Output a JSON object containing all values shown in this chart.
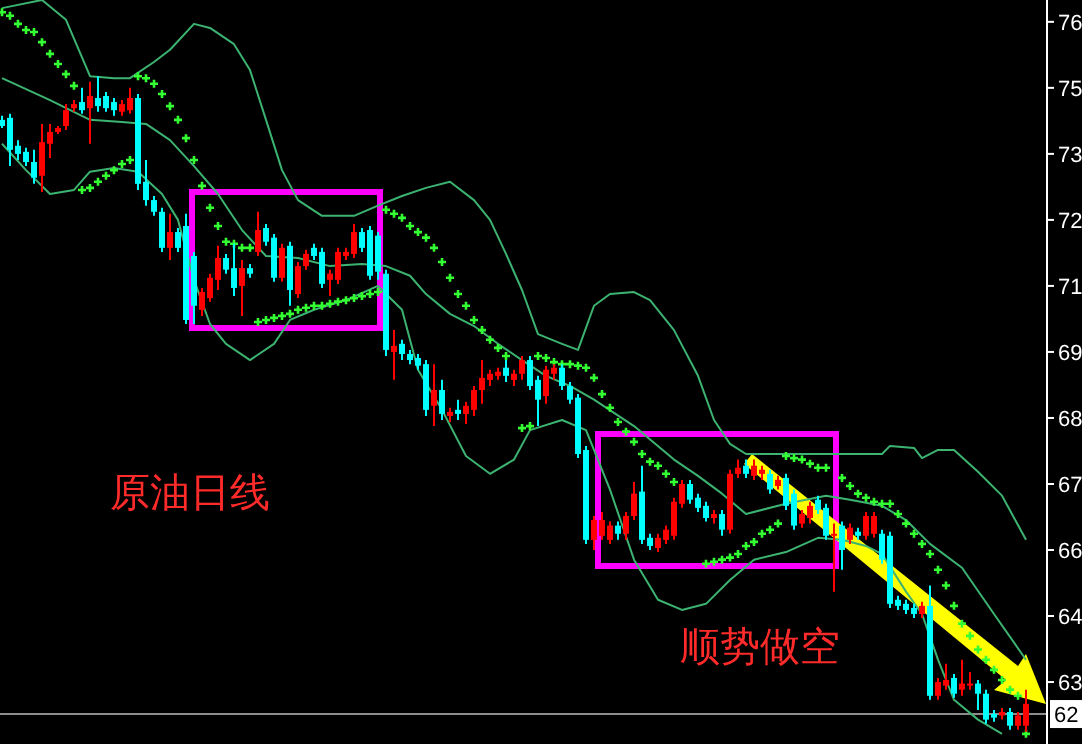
{
  "chart_data": {
    "type": "candlestick",
    "categories": [
      null,
      null,
      null,
      null,
      null,
      null,
      null,
      null,
      null,
      null,
      null,
      null,
      null,
      null,
      null,
      null,
      null,
      null,
      null,
      null,
      null,
      null,
      null,
      null,
      null,
      null,
      null,
      null,
      null,
      null,
      null,
      null,
      null,
      null,
      null,
      null,
      null,
      null,
      null,
      null,
      null,
      null,
      null,
      null,
      null,
      null,
      null,
      null,
      null,
      null,
      null,
      null,
      null,
      null,
      null,
      null,
      null,
      null,
      null,
      null,
      null,
      null,
      null,
      null,
      null,
      null,
      null,
      null,
      null,
      null,
      null,
      null,
      null,
      null,
      null,
      null,
      null,
      null,
      null,
      null,
      null,
      null,
      null,
      null,
      null,
      null,
      null,
      null,
      null,
      null,
      null,
      null,
      null,
      null,
      null,
      null,
      null,
      null,
      null,
      null,
      null,
      null,
      null,
      null,
      null,
      null,
      null,
      null,
      null,
      null,
      null,
      null,
      null,
      null,
      null,
      null,
      null,
      null,
      null,
      null,
      null,
      null,
      null,
      null,
      null,
      null,
      null,
      null,
      null
    ],
    "ohlc": [
      [
        74.02,
        74.1,
        73.86,
        73.9
      ],
      [
        74.06,
        74.14,
        73.11,
        73.43
      ],
      [
        73.51,
        73.62,
        73.23,
        73.35
      ],
      [
        73.39,
        73.47,
        73.11,
        73.19
      ],
      [
        73.19,
        73.43,
        72.76,
        72.88
      ],
      [
        72.92,
        73.94,
        72.6,
        73.58
      ],
      [
        73.55,
        73.94,
        73.27,
        73.78
      ],
      [
        73.78,
        73.9,
        73.74,
        73.86
      ],
      [
        73.9,
        74.33,
        73.82,
        74.21
      ],
      [
        74.25,
        74.41,
        74.18,
        74.33
      ],
      [
        74.37,
        74.65,
        74.14,
        74.21
      ],
      [
        74.25,
        74.77,
        73.55,
        74.49
      ],
      [
        74.45,
        74.88,
        74.18,
        74.29
      ],
      [
        74.49,
        74.57,
        74.18,
        74.25
      ],
      [
        74.37,
        74.45,
        74.1,
        74.21
      ],
      [
        74.18,
        74.41,
        74.1,
        74.33
      ],
      [
        74.21,
        74.65,
        74.14,
        74.45
      ],
      [
        74.45,
        74.53,
        72.64,
        72.76
      ],
      [
        72.8,
        73.23,
        72.33,
        72.44
      ],
      [
        72.44,
        72.52,
        72.13,
        72.21
      ],
      [
        72.21,
        72.29,
        71.42,
        71.5
      ],
      [
        71.5,
        72.17,
        71.26,
        71.81
      ],
      [
        71.81,
        71.89,
        71.42,
        71.5
      ],
      [
        71.93,
        72.17,
        70.0,
        70.08
      ],
      [
        71.34,
        71.42,
        70.0,
        70.36
      ],
      [
        70.28,
        70.71,
        70.16,
        70.63
      ],
      [
        70.51,
        70.99,
        70.44,
        70.91
      ],
      [
        70.87,
        71.54,
        70.67,
        71.3
      ],
      [
        71.3,
        71.38,
        70.99,
        71.07
      ],
      [
        71.1,
        71.58,
        70.55,
        70.71
      ],
      [
        70.75,
        71.26,
        70.16,
        71.1
      ],
      [
        71.1,
        71.18,
        70.91,
        70.99
      ],
      [
        71.42,
        72.21,
        71.34,
        71.85
      ],
      [
        71.89,
        71.97,
        71.54,
        71.62
      ],
      [
        71.7,
        71.77,
        70.83,
        70.91
      ],
      [
        70.91,
        71.58,
        70.83,
        71.5
      ],
      [
        71.54,
        71.62,
        70.36,
        70.67
      ],
      [
        70.59,
        71.22,
        70.51,
        71.14
      ],
      [
        71.14,
        71.46,
        71.07,
        71.38
      ],
      [
        71.5,
        71.58,
        71.26,
        71.34
      ],
      [
        71.42,
        71.5,
        70.71,
        70.79
      ],
      [
        70.87,
        71.07,
        70.55,
        70.99
      ],
      [
        70.87,
        71.5,
        70.79,
        71.42
      ],
      [
        71.34,
        71.5,
        71.26,
        71.42
      ],
      [
        71.38,
        71.97,
        71.3,
        71.81
      ],
      [
        71.81,
        71.89,
        71.42,
        71.5
      ],
      [
        71.85,
        71.93,
        70.87,
        70.95
      ],
      [
        71.74,
        71.81,
        70.87,
        71.03
      ],
      [
        70.99,
        71.07,
        69.37,
        69.49
      ],
      [
        69.45,
        69.88,
        68.9,
        69.57
      ],
      [
        69.61,
        69.69,
        69.29,
        69.41
      ],
      [
        69.41,
        69.49,
        69.21,
        69.29
      ],
      [
        69.33,
        69.41,
        69.1,
        69.18
      ],
      [
        69.21,
        69.29,
        68.19,
        68.31
      ],
      [
        68.39,
        69.21,
        67.99,
        68.7
      ],
      [
        68.7,
        68.9,
        68.11,
        68.23
      ],
      [
        68.19,
        68.35,
        68.07,
        68.27
      ],
      [
        68.31,
        68.51,
        68.11,
        68.23
      ],
      [
        68.23,
        68.47,
        68.03,
        68.39
      ],
      [
        68.31,
        68.78,
        68.19,
        68.7
      ],
      [
        68.7,
        69.29,
        68.43,
        68.94
      ],
      [
        68.9,
        69.1,
        68.78,
        69.02
      ],
      [
        68.98,
        69.14,
        68.9,
        69.06
      ],
      [
        69.14,
        69.29,
        68.86,
        68.98
      ],
      [
        68.9,
        69.1,
        68.78,
        69.02
      ],
      [
        69.02,
        69.37,
        68.9,
        69.29
      ],
      [
        69.29,
        69.37,
        68.7,
        68.78
      ],
      [
        68.9,
        68.98,
        67.99,
        68.51
      ],
      [
        68.58,
        69.18,
        68.43,
        69.1
      ],
      [
        69.02,
        69.21,
        68.9,
        69.14
      ],
      [
        69.14,
        69.21,
        68.7,
        68.78
      ],
      [
        68.78,
        68.86,
        68.43,
        68.51
      ],
      [
        68.55,
        68.62,
        67.36,
        67.44
      ],
      [
        67.52,
        67.6,
        65.67,
        65.75
      ],
      [
        65.75,
        66.22,
        65.55,
        66.14
      ],
      [
        65.83,
        66.3,
        65.75,
        66.14
      ],
      [
        65.75,
        66.11,
        65.67,
        66.03
      ],
      [
        66.03,
        66.11,
        65.75,
        65.87
      ],
      [
        65.87,
        66.3,
        65.75,
        66.22
      ],
      [
        66.22,
        66.89,
        66.14,
        66.66
      ],
      [
        66.7,
        67.21,
        65.67,
        65.75
      ],
      [
        65.79,
        65.87,
        65.55,
        65.63
      ],
      [
        65.59,
        65.87,
        65.51,
        65.79
      ],
      [
        65.75,
        66.03,
        65.67,
        65.95
      ],
      [
        65.83,
        66.58,
        65.75,
        66.5
      ],
      [
        66.46,
        66.93,
        66.38,
        66.85
      ],
      [
        66.85,
        66.93,
        66.46,
        66.54
      ],
      [
        66.58,
        66.66,
        66.3,
        66.38
      ],
      [
        66.42,
        66.5,
        66.11,
        66.18
      ],
      [
        66.18,
        66.34,
        66.07,
        66.26
      ],
      [
        66.26,
        66.34,
        65.83,
        65.95
      ],
      [
        65.95,
        67.13,
        65.87,
        67.05
      ],
      [
        67.05,
        67.33,
        66.97,
        67.17
      ],
      [
        67.21,
        67.33,
        66.97,
        67.05
      ],
      [
        67.01,
        67.33,
        66.93,
        67.21
      ],
      [
        67.05,
        67.21,
        66.93,
        67.13
      ],
      [
        67.05,
        67.13,
        66.66,
        66.74
      ],
      [
        66.81,
        67.01,
        66.74,
        66.93
      ],
      [
        66.97,
        67.05,
        66.34,
        66.42
      ],
      [
        66.66,
        66.74,
        65.95,
        66.03
      ],
      [
        66.07,
        66.34,
        65.99,
        66.26
      ],
      [
        66.18,
        66.5,
        66.07,
        66.42
      ],
      [
        66.54,
        66.62,
        66.26,
        66.34
      ],
      [
        66.38,
        66.46,
        65.75,
        65.83
      ],
      [
        65.83,
        66.07,
        64.73,
        65.87
      ],
      [
        66.03,
        66.11,
        65.16,
        65.55
      ],
      [
        65.75,
        66.07,
        65.67,
        65.99
      ],
      [
        65.91,
        65.99,
        65.75,
        65.83
      ],
      [
        65.83,
        66.3,
        65.75,
        66.22
      ],
      [
        65.87,
        66.3,
        65.79,
        66.22
      ],
      [
        65.87,
        65.95,
        65.28,
        65.36
      ],
      [
        65.83,
        65.91,
        64.41,
        64.49
      ],
      [
        64.57,
        64.65,
        64.37,
        64.45
      ],
      [
        64.49,
        64.57,
        64.29,
        64.37
      ],
      [
        64.41,
        64.49,
        64.21,
        64.29
      ],
      [
        64.29,
        64.53,
        64.21,
        64.45
      ],
      [
        64.45,
        64.85,
        62.6,
        62.68
      ],
      [
        62.68,
        63.03,
        62.6,
        62.95
      ],
      [
        62.88,
        63.31,
        62.8,
        62.99
      ],
      [
        63.03,
        63.11,
        62.64,
        62.72
      ],
      [
        62.8,
        63.39,
        62.68,
        62.92
      ],
      [
        62.88,
        63.15,
        62.8,
        62.92
      ],
      [
        62.92,
        62.99,
        62.4,
        62.72
      ],
      [
        62.72,
        62.8,
        62.13,
        62.21
      ],
      [
        62.32,
        62.4,
        62.17,
        62.25
      ],
      [
        62.29,
        62.44,
        62.21,
        62.36
      ],
      [
        62.36,
        62.44,
        62.01,
        62.09
      ],
      [
        62.09,
        62.36,
        62.01,
        62.29
      ],
      [
        62.09,
        62.8,
        61.97,
        62.52
      ]
    ],
    "colors": [
      "#00ffff",
      "#00ffff",
      "#00ffff",
      "#00ffff",
      "#00ffff",
      "#ff0000",
      "#ff0000",
      "#ff0000",
      "#ff0000",
      "#ff0000",
      "#00ffff",
      "#ff0000",
      "#00ffff",
      "#00ffff",
      "#00ffff",
      "#ff0000",
      "#ff0000",
      "#00ffff",
      "#00ffff",
      "#00ffff",
      "#00ffff",
      "#ff0000",
      "#00ffff",
      "#00ffff",
      "#00ffff",
      "#ff0000",
      "#ff0000",
      "#ff0000",
      "#00ffff",
      "#00ffff",
      "#ff0000",
      "#00ffff",
      "#ff0000",
      "#00ffff",
      "#00ffff",
      "#ff0000",
      "#00ffff",
      "#ff0000",
      "#ff0000",
      "#00ffff",
      "#00ffff",
      "#ff0000",
      "#ff0000",
      "#ff0000",
      "#ff0000",
      "#00ffff",
      "#00ffff",
      "#00ffff",
      "#00ffff",
      "#ff0000",
      "#00ffff",
      "#00ffff",
      "#00ffff",
      "#00ffff",
      "#ff0000",
      "#00ffff",
      "#ff0000",
      "#00ffff",
      "#ff0000",
      "#ff0000",
      "#ff0000",
      "#ff0000",
      "#ff0000",
      "#00ffff",
      "#ff0000",
      "#ff0000",
      "#00ffff",
      "#00ffff",
      "#ff0000",
      "#ff0000",
      "#00ffff",
      "#00ffff",
      "#00ffff",
      "#00ffff",
      "#ff0000",
      "#ff0000",
      "#ff0000",
      "#00ffff",
      "#ff0000",
      "#ff0000",
      "#00ffff",
      "#00ffff",
      "#ff0000",
      "#ff0000",
      "#ff0000",
      "#ff0000",
      "#00ffff",
      "#00ffff",
      "#00ffff",
      "#ff0000",
      "#00ffff",
      "#ff0000",
      "#ff0000",
      "#00ffff",
      "#ff0000",
      "#ff0000",
      "#00ffff",
      "#ff0000",
      "#00ffff",
      "#00ffff",
      "#ff0000",
      "#ff0000",
      "#00ffff",
      "#00ffff",
      "#ff0000",
      "#00ffff",
      "#ff0000",
      "#00ffff",
      "#ff0000",
      "#ff0000",
      "#00ffff",
      "#00ffff",
      "#00ffff",
      "#00ffff",
      "#00ffff",
      "#ff0000",
      "#00ffff",
      "#ff0000",
      "#ff0000",
      "#00ffff",
      "#ff0000",
      "#ff0000",
      "#00ffff",
      "#00ffff",
      "#00ffff",
      "#ff0000",
      "#00ffff",
      "#ff0000",
      "#ff0000"
    ],
    "series": [
      {
        "type": "line",
        "color": "#3cb371",
        "values": [
          76.22,
          null,
          null,
          null,
          null,
          76.38,
          null,
          null,
          75.99,
          null,
          null,
          74.88,
          null,
          null,
          74.84,
          null,
          74.84,
          null,
          null,
          75.16,
          null,
          75.4,
          null,
          null,
          75.91,
          null,
          75.83,
          null,
          null,
          75.51,
          null,
          75.0,
          null,
          74.02,
          null,
          73.03,
          null,
          72.44,
          null,
          null,
          72.13,
          null,
          null,
          null,
          72.13,
          null,
          null,
          72.33,
          null,
          null,
          72.52,
          null,
          null,
          72.68,
          null,
          null,
          72.8,
          null,
          null,
          72.44,
          null,
          72.05,
          null,
          71.38,
          null,
          70.67,
          null,
          69.8,
          null,
          null,
          69.61,
          null,
          69.49,
          null,
          70.36,
          null,
          70.59,
          null,
          null,
          70.63,
          null,
          70.47,
          null,
          null,
          69.88,
          null,
          null,
          68.98,
          null,
          68.11,
          null,
          67.64,
          null,
          67.44,
          null,
          null,
          null,
          67.44,
          null,
          null,
          null,
          67.44,
          null,
          null,
          null,
          67.44,
          null,
          null,
          null,
          null,
          67.44,
          67.6,
          null,
          null,
          67.56,
          67.36,
          null,
          67.52,
          null,
          67.52,
          null,
          null,
          67.09,
          null,
          null,
          66.62,
          null,
          null,
          65.75
        ]
      },
      {
        "type": "line",
        "color": "#3cb371",
        "values": [
          74.84,
          null,
          null,
          null,
          null,
          null,
          74.41,
          null,
          null,
          null,
          null,
          74.02,
          null,
          null,
          null,
          73.98,
          null,
          null,
          73.94,
          null,
          null,
          73.62,
          null,
          null,
          73.11,
          null,
          null,
          72.56,
          null,
          null,
          71.85,
          null,
          null,
          71.34,
          null,
          null,
          null,
          71.3,
          null,
          null,
          null,
          71.14,
          null,
          null,
          null,
          71.18,
          null,
          null,
          71.14,
          null,
          null,
          70.95,
          null,
          70.59,
          null,
          null,
          70.2,
          null,
          null,
          69.96,
          null,
          null,
          69.61,
          null,
          null,
          69.29,
          null,
          null,
          68.98,
          null,
          null,
          68.78,
          null,
          null,
          68.51,
          null,
          null,
          null,
          null,
          67.99,
          null,
          null,
          null,
          null,
          67.33,
          null,
          null,
          67.01,
          null,
          null,
          66.66,
          null,
          null,
          66.26,
          null,
          null,
          null,
          null,
          66.46,
          null,
          null,
          null,
          null,
          66.62,
          null,
          null,
          66.54,
          null,
          null,
          null,
          66.42,
          null,
          null,
          66.14,
          null,
          null,
          65.67,
          null,
          null,
          null,
          65.2,
          null,
          null,
          null,
          64.29,
          null,
          null,
          null,
          63.39
        ]
      },
      {
        "type": "line",
        "color": "#3cb371",
        "values": [
          73.55,
          null,
          null,
          73.03,
          null,
          null,
          72.56,
          null,
          null,
          72.64,
          null,
          73.0,
          null,
          null,
          73.07,
          null,
          null,
          73.0,
          null,
          null,
          72.56,
          null,
          72.05,
          null,
          70.87,
          null,
          70.0,
          null,
          69.61,
          null,
          null,
          69.29,
          null,
          null,
          69.61,
          null,
          70.08,
          null,
          null,
          70.28,
          null,
          null,
          null,
          70.47,
          null,
          null,
          null,
          70.75,
          null,
          null,
          70.28,
          null,
          69.1,
          null,
          null,
          68.31,
          null,
          null,
          67.4,
          null,
          null,
          67.05,
          null,
          null,
          67.33,
          null,
          67.91,
          null,
          null,
          null,
          68.11,
          null,
          null,
          67.91,
          null,
          null,
          66.74,
          null,
          null,
          65.36,
          null,
          null,
          64.57,
          null,
          null,
          64.37,
          null,
          null,
          64.49,
          null,
          null,
          64.96,
          null,
          null,
          65.36,
          null,
          null,
          null,
          65.51,
          null,
          null,
          null,
          65.79,
          null,
          null,
          65.75,
          null,
          null,
          65.63,
          null,
          65.47,
          null,
          null,
          64.73,
          null,
          64.29,
          null,
          63.39,
          null,
          62.6,
          null,
          null,
          62.21,
          null,
          null,
          61.93,
          null,
          null,
          null
        ]
      },
      {
        "type": "scatter",
        "color": "#33ff33",
        "marker": "cross",
        "values": [
          76.14,
          76.07,
          75.91,
          75.79,
          75.75,
          75.55,
          75.32,
          75.12,
          74.92,
          74.69,
          72.64,
          72.68,
          72.8,
          72.92,
          73.03,
          73.15,
          73.23,
          74.88,
          74.84,
          74.73,
          74.53,
          74.29,
          74.02,
          73.66,
          73.23,
          72.72,
          72.29,
          71.93,
          71.62,
          71.58,
          71.5,
          71.5,
          70.04,
          70.08,
          70.12,
          70.16,
          70.2,
          70.28,
          70.32,
          70.36,
          70.36,
          70.4,
          70.44,
          70.47,
          70.51,
          70.55,
          70.59,
          70.63,
          72.25,
          72.17,
          72.09,
          71.93,
          71.81,
          71.7,
          71.5,
          71.22,
          70.91,
          70.59,
          70.36,
          70.08,
          69.88,
          69.69,
          69.53,
          69.37,
          null,
          67.95,
          67.99,
          69.37,
          69.33,
          69.25,
          69.21,
          69.21,
          69.18,
          69.14,
          68.94,
          68.62,
          68.35,
          68.07,
          67.88,
          67.68,
          67.44,
          67.29,
          67.21,
          67.05,
          66.89,
          null,
          null,
          null,
          65.28,
          65.32,
          65.36,
          65.4,
          65.47,
          65.63,
          65.71,
          65.87,
          65.95,
          66.07,
          67.4,
          67.36,
          67.33,
          67.25,
          67.17,
          67.17,
          null,
          66.97,
          66.81,
          66.66,
          66.58,
          66.5,
          66.46,
          66.46,
          66.26,
          66.07,
          65.87,
          65.67,
          65.47,
          65.16,
          64.85,
          64.45,
          64.1,
          63.86,
          63.59,
          63.39,
          63.19,
          62.99,
          62.8,
          62.68,
          61.93
        ]
      }
    ],
    "ylim": [
      61.73,
      76.38
    ],
    "yticks": [
      {
        "value": 75.95,
        "label": "76"
      },
      {
        "value": 74.65,
        "label": "75"
      },
      {
        "value": 73.35,
        "label": "73"
      },
      {
        "value": 72.05,
        "label": "72"
      },
      {
        "value": 70.75,
        "label": "71"
      },
      {
        "value": 69.45,
        "label": "69"
      },
      {
        "value": 68.15,
        "label": "68"
      },
      {
        "value": 66.85,
        "label": "67"
      },
      {
        "value": 65.55,
        "label": "66"
      },
      {
        "value": 64.25,
        "label": "64"
      },
      {
        "value": 62.95,
        "label": "63"
      }
    ],
    "ref_lines": [
      {
        "axis": "y",
        "value": 62.32,
        "label": "62",
        "color": "#8c8c8c"
      }
    ],
    "annotations": [
      "原油日线",
      "顺势做空"
    ]
  }
}
